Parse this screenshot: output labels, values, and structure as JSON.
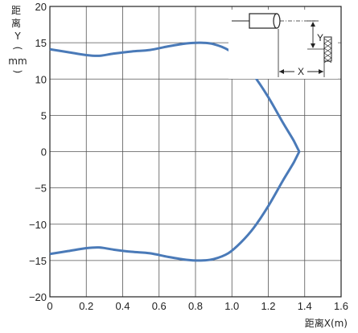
{
  "chart_data": {
    "type": "line",
    "xlabel": "距离X(m)",
    "ylabel": [
      "距",
      "离",
      "Y",
      "(",
      "mm",
      ")"
    ],
    "xlim": [
      0,
      1.6
    ],
    "ylim": [
      -20,
      20
    ],
    "xticks": [
      "0",
      "0.2",
      "0.4",
      "0.6",
      "0.8",
      "1.0",
      "1.2",
      "1.4",
      "1.6"
    ],
    "xtick_values": [
      0,
      0.2,
      0.4,
      0.6,
      0.8,
      1.0,
      1.2,
      1.4,
      1.6
    ],
    "yticks": [
      "20",
      "15",
      "10",
      "5",
      "0",
      "−5",
      "−10",
      "−15",
      "−20"
    ],
    "ytick_values": [
      20,
      15,
      10,
      5,
      0,
      -5,
      -10,
      -15,
      -20
    ],
    "grid": true,
    "line_color": "#4a7ab8",
    "series": [
      {
        "x": [
          0,
          0.1,
          0.2,
          0.27,
          0.35,
          0.45,
          0.55,
          0.65,
          0.75,
          0.83,
          0.9,
          0.98,
          1.05,
          1.12,
          1.2,
          1.28,
          1.34,
          1.37
        ],
        "y": [
          14.1,
          13.7,
          13.3,
          13.2,
          13.5,
          13.8,
          14.0,
          14.5,
          14.9,
          15.0,
          14.8,
          14.0,
          12.5,
          10.5,
          7.5,
          4.0,
          1.5,
          0
        ],
        "mirror": true
      }
    ],
    "inset": {
      "x_label": "X",
      "y_label": "Y"
    }
  }
}
